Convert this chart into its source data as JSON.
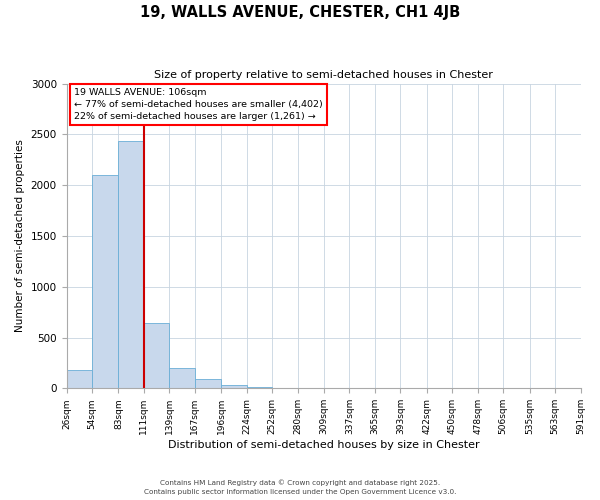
{
  "title": "19, WALLS AVENUE, CHESTER, CH1 4JB",
  "subtitle": "Size of property relative to semi-detached houses in Chester",
  "xlabel": "Distribution of semi-detached houses by size in Chester",
  "ylabel": "Number of semi-detached properties",
  "bar_color": "#c8d8ec",
  "bar_edge_color": "#6aaed6",
  "background_color": "#ffffff",
  "grid_color": "#c8d4e0",
  "bin_labels": [
    "26sqm",
    "54sqm",
    "83sqm",
    "111sqm",
    "139sqm",
    "167sqm",
    "196sqm",
    "224sqm",
    "252sqm",
    "280sqm",
    "309sqm",
    "337sqm",
    "365sqm",
    "393sqm",
    "422sqm",
    "450sqm",
    "478sqm",
    "506sqm",
    "535sqm",
    "563sqm",
    "591sqm"
  ],
  "bar_values": [
    185,
    2100,
    2430,
    645,
    205,
    90,
    35,
    10,
    3,
    0,
    0,
    0,
    0,
    0,
    0,
    0,
    0,
    0,
    0,
    0
  ],
  "ylim": [
    0,
    3000
  ],
  "yticks": [
    0,
    500,
    1000,
    1500,
    2000,
    2500,
    3000
  ],
  "property_line_x": 111,
  "bin_edges": [
    26,
    54,
    83,
    111,
    139,
    167,
    196,
    224,
    252,
    280,
    309,
    337,
    365,
    393,
    422,
    450,
    478,
    506,
    535,
    563,
    591
  ],
  "annotation_title": "19 WALLS AVENUE: 106sqm",
  "annotation_line1": "← 77% of semi-detached houses are smaller (4,402)",
  "annotation_line2": "22% of semi-detached houses are larger (1,261) →",
  "vline_color": "#cc0000",
  "footer1": "Contains HM Land Registry data © Crown copyright and database right 2025.",
  "footer2": "Contains public sector information licensed under the Open Government Licence v3.0."
}
